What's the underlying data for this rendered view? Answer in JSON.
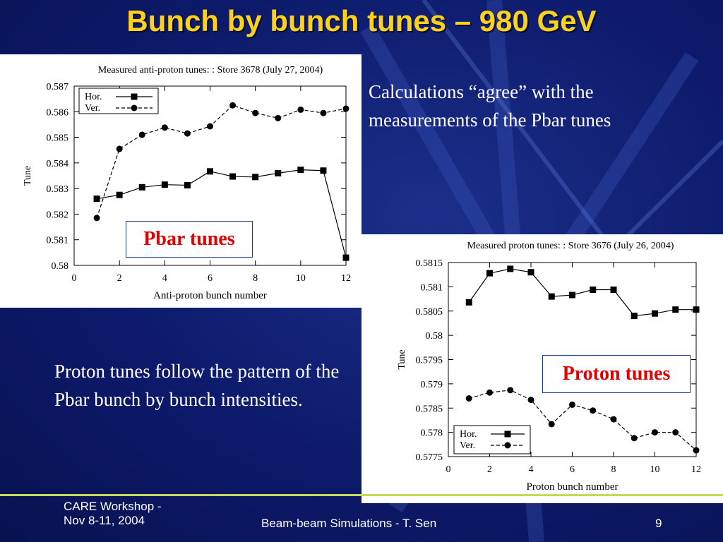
{
  "slide": {
    "title": "Bunch by bunch tunes – 980 GeV",
    "text_top": "Calculations “agree” with the measurements of the Pbar tunes",
    "text_bottom": "Proton tunes follow the pattern of the Pbar bunch by bunch intensities.",
    "label_pbar": "Pbar tunes",
    "label_proton": "Proton tunes",
    "footer_left_1": "CARE Workshop -",
    "footer_left_2": "Nov 8-11, 2004",
    "footer_center": "Beam-beam Simulations - T. Sen",
    "footer_page": "9"
  },
  "colors": {
    "title": "#ffd21a",
    "label": "#e00000",
    "background": "#0d1a6b"
  },
  "chart_data": [
    {
      "type": "line",
      "title": "Measured anti-proton tunes: : Store 3678 (July 27, 2004)",
      "xlabel": "Anti-proton bunch number",
      "ylabel": "Tune",
      "xlim": [
        0,
        12
      ],
      "ylim": [
        0.58,
        0.587
      ],
      "xticks": [
        0,
        2,
        4,
        6,
        8,
        10,
        12
      ],
      "yticks": [
        "0.58",
        "0.581",
        "0.582",
        "0.583",
        "0.584",
        "0.585",
        "0.586",
        "0.587"
      ],
      "legend_position": "top-left",
      "x": [
        1,
        2,
        3,
        4,
        5,
        6,
        7,
        8,
        9,
        10,
        11,
        12
      ],
      "series": [
        {
          "name": "Hor.",
          "marker": "square",
          "values": [
            0.5826,
            0.58275,
            0.58305,
            0.58315,
            0.58313,
            0.58367,
            0.58347,
            0.58345,
            0.5836,
            0.58373,
            0.5837,
            0.5803
          ]
        },
        {
          "name": "Ver.",
          "marker": "circle",
          "values": [
            0.58185,
            0.58455,
            0.5851,
            0.58538,
            0.58515,
            0.58543,
            0.58625,
            0.58595,
            0.58575,
            0.58608,
            0.58595,
            0.58612
          ]
        }
      ]
    },
    {
      "type": "line",
      "title": "Measured proton tunes: : Store 3676 (July 26, 2004)",
      "xlabel": "Proton bunch number",
      "ylabel": "Tune",
      "xlim": [
        0,
        12
      ],
      "ylim": [
        0.5775,
        0.5815
      ],
      "xticks": [
        0,
        2,
        4,
        6,
        8,
        10,
        12
      ],
      "yticks": [
        "0.5775",
        "0.578",
        "0.5785",
        "0.579",
        "0.5795",
        "0.58",
        "0.5805",
        "0.581",
        "0.5815"
      ],
      "legend_position": "bottom-left",
      "x": [
        1,
        2,
        3,
        4,
        5,
        6,
        7,
        8,
        9,
        10,
        11,
        12
      ],
      "series": [
        {
          "name": "Hor.",
          "marker": "square",
          "values": [
            0.58068,
            0.58128,
            0.58137,
            0.5813,
            0.5808,
            0.58083,
            0.58094,
            0.58094,
            0.5804,
            0.58045,
            0.58053,
            0.58053
          ]
        },
        {
          "name": "Ver.",
          "marker": "circle",
          "values": [
            0.5787,
            0.57882,
            0.57887,
            0.57867,
            0.57817,
            0.57857,
            0.57845,
            0.57827,
            0.57788,
            0.578,
            0.578,
            0.57763
          ]
        }
      ]
    }
  ]
}
